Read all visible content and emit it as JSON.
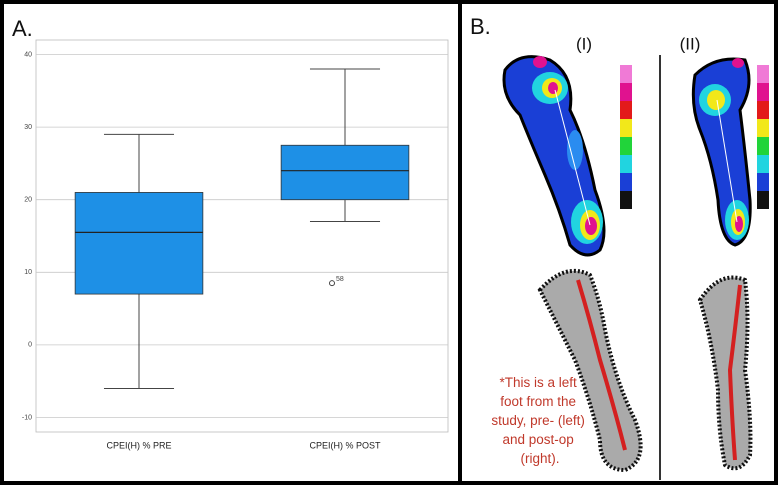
{
  "panel_labels": [
    "A.",
    "B."
  ],
  "chart_data": {
    "type": "box",
    "categories": [
      "CPEI(H)  % PRE",
      "CPEI(H)  % POST"
    ],
    "boxes": [
      {
        "whislo": -6,
        "q1": 7,
        "med": 15.5,
        "q3": 21,
        "whishi": 29,
        "fliers": []
      },
      {
        "whislo": 17,
        "q1": 20,
        "med": 24,
        "q3": 27.5,
        "whishi": 38,
        "fliers": [
          8.5
        ],
        "flier_labels": [
          "58"
        ]
      }
    ],
    "color": "#1e90e6",
    "ylim": [
      -12,
      42
    ],
    "yticks": [
      -10,
      0,
      10,
      20,
      30,
      40
    ],
    "grid": true
  },
  "panel_b": {
    "conditions": [
      "(I)",
      "(II)"
    ],
    "note": [
      "*This is a left",
      "foot from the",
      "study, pre- (left)",
      "and post-op",
      "(right)."
    ]
  }
}
